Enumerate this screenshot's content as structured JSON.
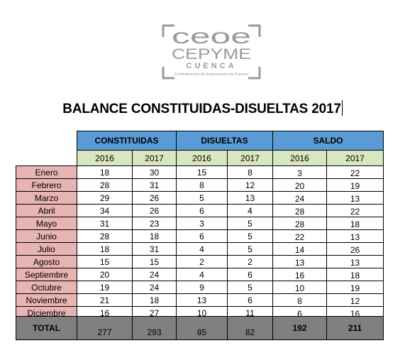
{
  "logo": {
    "line1": "ceoe",
    "line2": "CEPYME",
    "line3": "CUENCA",
    "line4": "Confederación de Empresarios de Cuenca"
  },
  "title": "BALANCE CONSTITUIDAS-DISUELTAS 2017",
  "groups": [
    "CONSTITUIDAS",
    "DISUELTAS",
    "SALDO"
  ],
  "years": [
    "2016",
    "2017",
    "2016",
    "2017",
    "2016",
    "2017"
  ],
  "rows": [
    {
      "month": "Enero",
      "values": [
        "18",
        "30",
        "15",
        "8",
        "3",
        "22"
      ]
    },
    {
      "month": "Febrero",
      "values": [
        "28",
        "31",
        "8",
        "12",
        "20",
        "19"
      ]
    },
    {
      "month": "Marzo",
      "values": [
        "29",
        "26",
        "5",
        "13",
        "24",
        "13"
      ]
    },
    {
      "month": "Abril",
      "values": [
        "34",
        "26",
        "6",
        "4",
        "28",
        "22"
      ]
    },
    {
      "month": "Mayo",
      "values": [
        "31",
        "23",
        "3",
        "5",
        "28",
        "18"
      ]
    },
    {
      "month": "Junio",
      "values": [
        "28",
        "18",
        "6",
        "5",
        "22",
        "13"
      ]
    },
    {
      "month": "Julio",
      "values": [
        "18",
        "31",
        "4",
        "5",
        "14",
        "26"
      ]
    },
    {
      "month": "Agosto",
      "values": [
        "15",
        "15",
        "2",
        "2",
        "13",
        "13"
      ]
    },
    {
      "month": "Septiembre",
      "values": [
        "20",
        "24",
        "4",
        "6",
        "16",
        "18"
      ]
    },
    {
      "month": "Octubre",
      "values": [
        "19",
        "24",
        "9",
        "5",
        "10",
        "19"
      ]
    },
    {
      "month": "Noviembre",
      "values": [
        "21",
        "18",
        "13",
        "6",
        "8",
        "12"
      ]
    },
    {
      "month": "Diciembre",
      "values": [
        "16",
        "27",
        "10",
        "11",
        "6",
        "16"
      ]
    }
  ],
  "total": {
    "label": "TOTAL",
    "values": [
      "277",
      "293",
      "85",
      "82",
      "192",
      "211"
    ]
  },
  "colors": {
    "header": "#5b9bd5",
    "year": "#d9e7c1",
    "month": "#e8b3b3",
    "total": "#808080",
    "logo": "#9a9a9a"
  }
}
